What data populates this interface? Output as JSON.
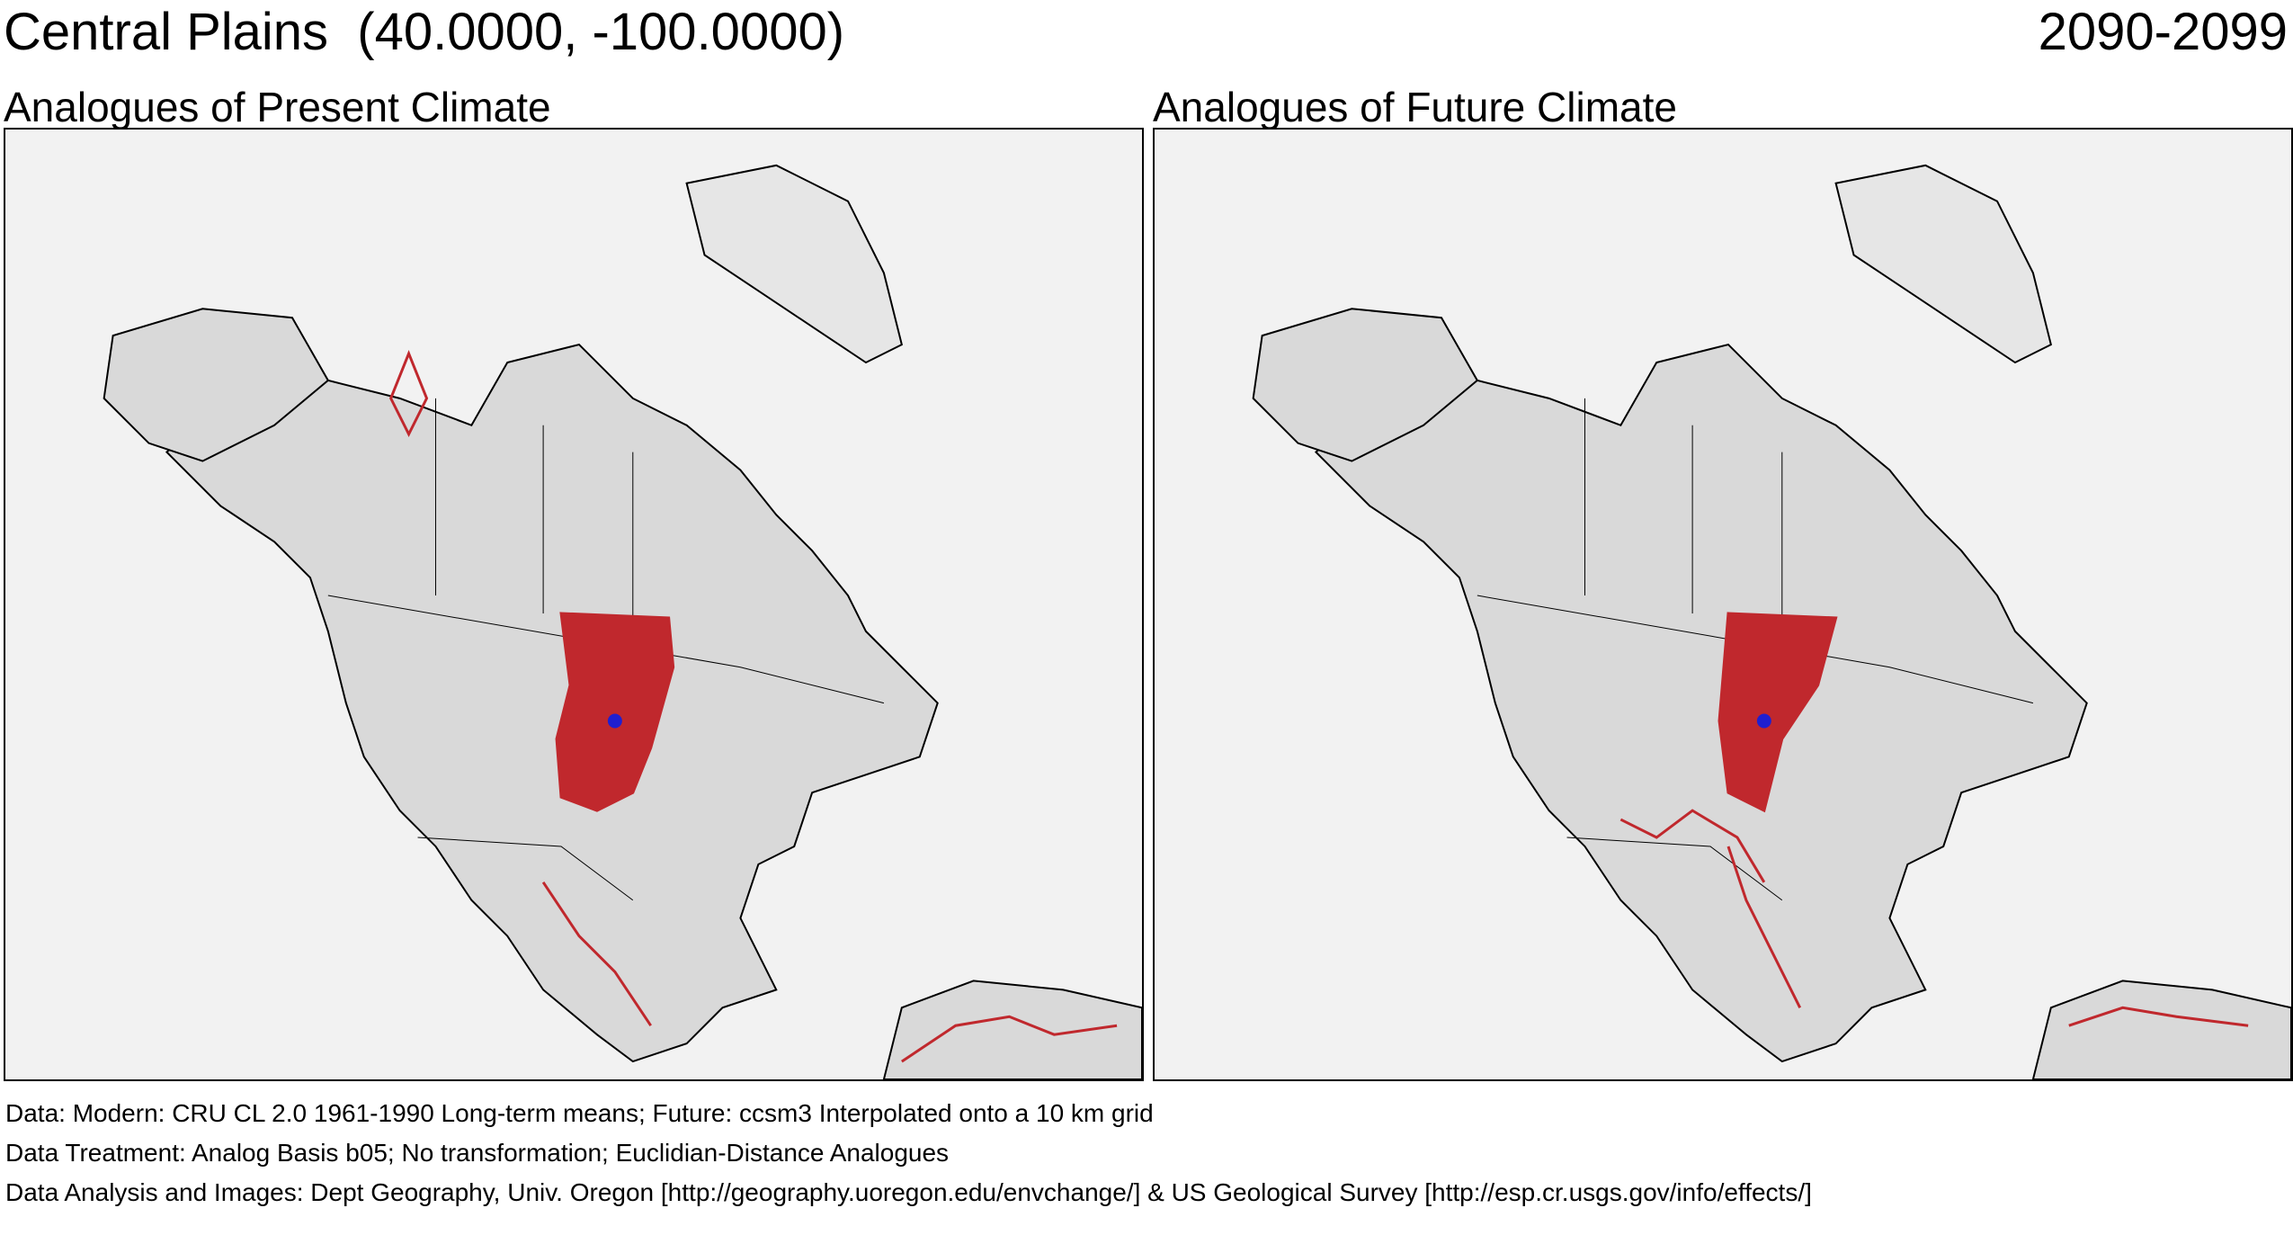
{
  "header": {
    "title": "Central Plains  (40.0000, -100.0000)",
    "period": "2090-2099"
  },
  "panels": [
    {
      "title": "Analogues of Present Climate",
      "map_name": "present-climate-map"
    },
    {
      "title": "Analogues of Future Climate",
      "map_name": "future-climate-map"
    }
  ],
  "colors": {
    "analogue": "#c0282d",
    "focal_point": "#1f1fd0",
    "land": "#d9d9d9",
    "ocean": "#f2f2f2",
    "boundary": "#000000"
  },
  "footer": {
    "data": "Data:  Modern: CRU CL 2.0 1961-1990 Long-term means; Future: ccsm3 Interpolated onto a 10 km grid",
    "treatment": "Data Treatment:  Analog Basis b05; No transformation; Euclidian-Distance Analogues",
    "analysis": "Data Analysis and Images:  Dept Geography, Univ. Oregon [http://geography.uoregon.edu/envchange/] & US Geological Survey [http://esp.cr.usgs.gov/info/effects/]"
  }
}
